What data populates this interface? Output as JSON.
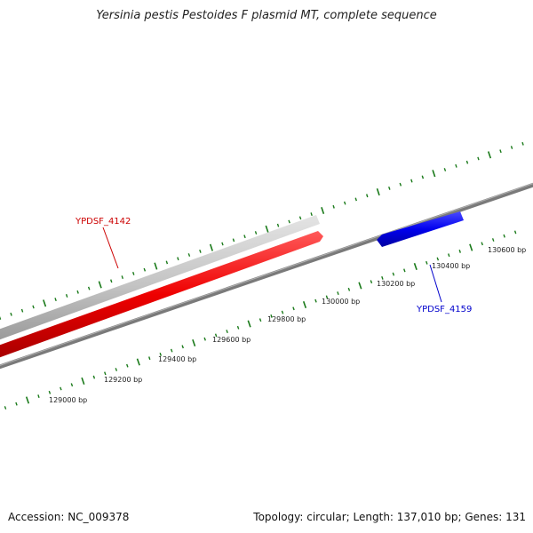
{
  "title": "Yersinia pestis Pestoides F plasmid MT, complete sequence",
  "footer": {
    "accession": "Accession: NC_009378",
    "summary": "Topology: circular; Length: 137,010 bp; Genes: 131"
  },
  "colors": {
    "backbone": "#7a7a7a",
    "tick": "#1a7a1a",
    "gene_grey": "#c4c4c4",
    "gene_red": "#ee0000",
    "gene_blue": "#0000ee",
    "label_red": "#cc0000",
    "label_blue": "#0000cc"
  },
  "ticks": [
    {
      "label": "129000 bp"
    },
    {
      "label": "129200 bp"
    },
    {
      "label": "129400 bp"
    },
    {
      "label": "129600 bp"
    },
    {
      "label": "129800 bp"
    },
    {
      "label": "130000 bp"
    },
    {
      "label": "130200 bp"
    },
    {
      "label": "130400 bp"
    },
    {
      "label": "130600 bp"
    }
  ],
  "genes": [
    {
      "name": "",
      "strand": "outer",
      "color": "gene_grey"
    },
    {
      "name": "YPDSF_4142",
      "strand": "forward",
      "color": "gene_red"
    },
    {
      "name": "YPDSF_4159",
      "strand": "reverse",
      "color": "gene_blue"
    }
  ]
}
